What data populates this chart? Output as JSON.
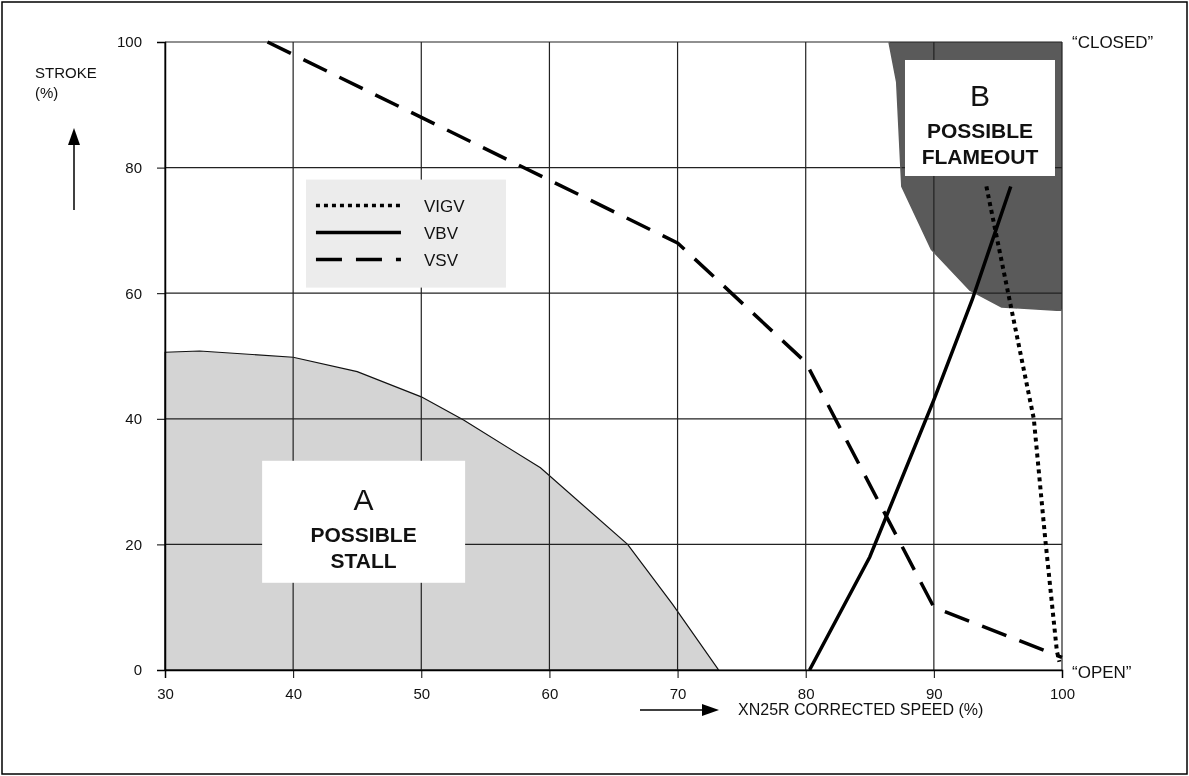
{
  "chart_data": {
    "type": "line",
    "xlabel": "XN25R CORRECTED SPEED (%)",
    "ylabel": "STROKE (%)",
    "xlim": [
      30,
      100
    ],
    "xticks": [
      30,
      40,
      50,
      60,
      70,
      80,
      90,
      100
    ],
    "ylim": [
      0,
      100
    ],
    "yticks": [
      0,
      20,
      40,
      60,
      80,
      100
    ],
    "grid": true,
    "legend": "top left",
    "series": [
      {
        "type": "area",
        "color": "#d4d4d4",
        "x": [
          30,
          32.7,
          40,
          45,
          50,
          53.3,
          59.3,
          66.1,
          69.6,
          73.2
        ],
        "values": [
          50.6,
          50.8,
          49.8,
          47.5,
          43.5,
          39.8,
          32.2,
          20,
          10.5,
          0
        ]
      },
      {
        "type": "line",
        "line_style": "solid",
        "color": "#5a5a5a",
        "x": [
          86.5,
          87.1,
          87.5,
          89.8,
          92.8,
          95.3,
          99.6,
          100
        ],
        "values": [
          100,
          93.6,
          77,
          67,
          60.5,
          57.8,
          57.3,
          57.3
        ],
        "lower": [
          100,
          93.6,
          77,
          67,
          60.5,
          57.8,
          57.3,
          57.3
        ],
        "upper": [
          100,
          100,
          100,
          100,
          100,
          100,
          100,
          100
        ]
      },
      {
        "name": "VIGV",
        "color": "#000000",
        "line_style": "dotted",
        "x": [
          94.1,
          96.3,
          97.8,
          98.7,
          99.6,
          99.8
        ],
        "values": [
          77,
          55,
          40,
          20.7,
          3,
          1.3
        ]
      },
      {
        "name": "VBV",
        "color": "#000000",
        "line_style": "solid",
        "x": [
          80.3,
          85,
          90,
          93,
          96
        ],
        "values": [
          0,
          18,
          43,
          59,
          77
        ]
      },
      {
        "name": "VSV",
        "color": "#000000",
        "line_style": "dashed",
        "x": [
          38,
          70,
          80,
          90,
          100
        ],
        "values": [
          100,
          68,
          49,
          10,
          2
        ]
      }
    ],
    "annotations": [
      "A",
      "POSSIBLE STALL",
      "B",
      "POSSIBLE FLAMEOUT",
      "“CLOSED”",
      "“OPEN”"
    ]
  }
}
